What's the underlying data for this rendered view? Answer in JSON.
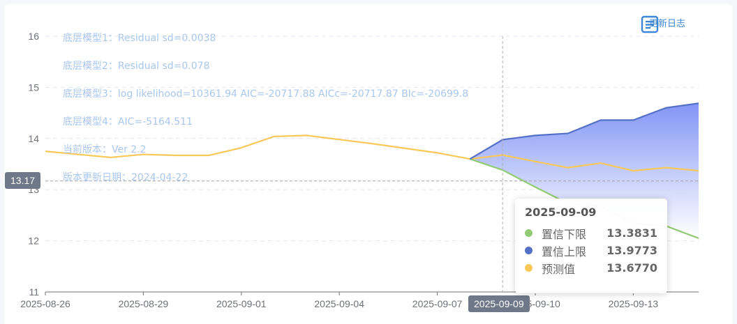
{
  "info_lines": [
    "底层模型1：Residual sd=0.0038",
    "底层模型2：Residual sd=0.078",
    "底层模型3：log likelihood=10361.94 AIC=-20717.88 AICc=-20717.87 BIc=-20699.8",
    "底层模型4：AIC=-5164.511",
    "当前版本：Ver 2.2",
    "版本更新日期：2024-04-22"
  ],
  "toolbar": {
    "changelog_label": "更新日志",
    "changelog_icon": "document-list-icon"
  },
  "axis_pointer": {
    "y_label": "13.17",
    "x_label": "2025-09-09"
  },
  "tooltip": {
    "title": "2025-09-09",
    "rows": [
      {
        "name": "置信下限",
        "value": "13.3831",
        "color": "#91cc75"
      },
      {
        "name": "置信上限",
        "value": "13.9773",
        "color": "#5470c6"
      },
      {
        "name": "预测值",
        "value": "13.6770",
        "color": "#fac858"
      }
    ]
  },
  "chart_data": {
    "type": "line",
    "x": [
      "2025-08-26",
      "2025-08-27",
      "2025-08-28",
      "2025-08-29",
      "2025-08-30",
      "2025-08-31",
      "2025-09-01",
      "2025-09-02",
      "2025-09-03",
      "2025-09-04",
      "2025-09-05",
      "2025-09-06",
      "2025-09-07",
      "2025-09-08",
      "2025-09-09",
      "2025-09-10",
      "2025-09-11",
      "2025-09-12",
      "2025-09-13",
      "2025-09-14",
      "2025-09-15"
    ],
    "x_tick_labels": [
      "2025-08-26",
      "2025-08-29",
      "2025-09-01",
      "2025-09-04",
      "2025-09-07",
      "2025-09-10",
      "2025-09-13"
    ],
    "ylim": [
      11,
      16
    ],
    "y_ticks": [
      11,
      12,
      13,
      14,
      15,
      16
    ],
    "grid": true,
    "series": [
      {
        "name": "预测值",
        "color": "#fac858",
        "values": [
          13.75,
          13.69,
          13.63,
          13.69,
          13.67,
          13.67,
          13.82,
          14.04,
          14.06,
          13.98,
          13.9,
          13.81,
          13.72,
          13.6,
          13.677,
          13.55,
          13.43,
          13.52,
          13.37,
          13.43,
          13.37
        ]
      },
      {
        "name": "置信下限",
        "color": "#91cc75",
        "values": [
          null,
          null,
          null,
          null,
          null,
          null,
          null,
          null,
          null,
          null,
          null,
          null,
          null,
          13.6,
          13.3831,
          13.05,
          12.73,
          12.68,
          12.34,
          12.29,
          12.05
        ]
      },
      {
        "name": "置信上限",
        "color": "#5470c6",
        "values": [
          null,
          null,
          null,
          null,
          null,
          null,
          null,
          null,
          null,
          null,
          null,
          null,
          null,
          13.6,
          13.9773,
          14.06,
          14.1,
          14.36,
          14.36,
          14.6,
          14.69
        ]
      }
    ],
    "area_fill_colors": [
      "#7b8ff5",
      "#ffffff"
    ]
  }
}
